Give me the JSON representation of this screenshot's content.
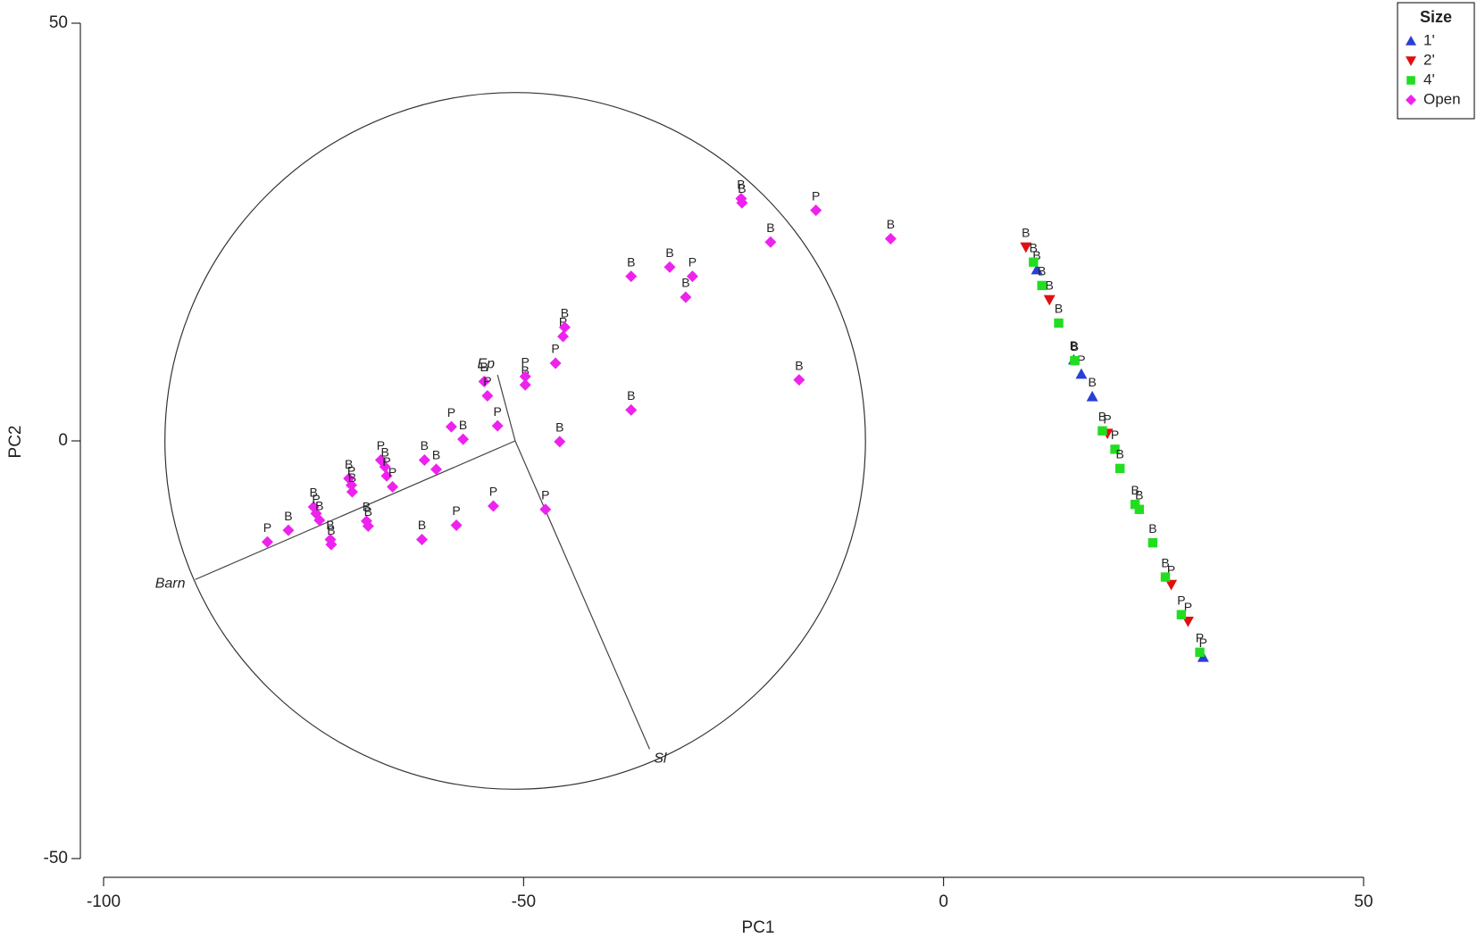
{
  "chart_data": {
    "type": "scatter",
    "x_label": "PC1",
    "y_label": "PC2",
    "xlim": [
      -100,
      50
    ],
    "xticks": [
      -100,
      -50,
      0,
      50
    ],
    "ylim": [
      -50,
      50
    ],
    "yticks": [
      -50,
      0,
      50
    ],
    "legend_title": "Size",
    "legend_position": "top-right",
    "series": [
      {
        "name": "1'",
        "color": "#2a3fd6",
        "marker": "triangle-up",
        "x": [
          11.1,
          15.5,
          16.4,
          17.7,
          30.9
        ],
        "values": [
          20.5,
          9.7,
          8.0,
          5.3,
          -25.9
        ],
        "labels": [
          "B",
          "B",
          "P",
          "B",
          "P"
        ]
      },
      {
        "name": "2'",
        "color": "#e01010",
        "marker": "triangle-down",
        "x": [
          9.8,
          12.6,
          19.5,
          27.1,
          29.1
        ],
        "values": [
          23.2,
          16.9,
          0.9,
          -17.2,
          -21.6
        ],
        "labels": [
          "B",
          "B",
          "P",
          "P",
          "P"
        ]
      },
      {
        "name": "4'",
        "color": "#22dd22",
        "marker": "square",
        "x": [
          10.7,
          11.7,
          13.7,
          15.6,
          18.9,
          20.4,
          21.0,
          22.8,
          23.3,
          24.9,
          26.4,
          28.3,
          30.5
        ],
        "values": [
          21.4,
          18.6,
          14.1,
          9.6,
          1.2,
          -1.0,
          -3.3,
          -7.6,
          -8.2,
          -12.2,
          -16.3,
          -20.8,
          -25.3
        ],
        "labels": [
          "B",
          "B",
          "B",
          "B",
          "B",
          "P",
          "B",
          "B",
          "B",
          "B",
          "B",
          "P",
          "P"
        ]
      },
      {
        "name": "Open",
        "color": "#ee22ee",
        "marker": "diamond",
        "x": [
          -80.5,
          -78.0,
          -75.0,
          -74.7,
          -74.3,
          -72.9,
          -73.0,
          -70.8,
          -70.5,
          -70.4,
          -68.7,
          -68.5,
          -67.0,
          -66.5,
          -66.3,
          -65.6,
          -62.1,
          -61.8,
          -60.4,
          -58.6,
          -58.0,
          -57.2,
          -54.7,
          -54.3,
          -53.1,
          -53.6,
          -49.8,
          -49.8,
          -47.4,
          -46.2,
          -45.7,
          -45.3,
          -45.1,
          -37.2,
          -37.2,
          -32.6,
          -30.7,
          -29.9,
          -24.1,
          -24.0,
          -20.6,
          -17.2,
          -15.2,
          -6.3
        ],
        "values": [
          -12.1,
          -10.7,
          -7.9,
          -8.7,
          -9.5,
          -12.4,
          -11.8,
          -4.5,
          -5.3,
          -6.1,
          -9.6,
          -10.2,
          -2.3,
          -3.1,
          -4.2,
          -5.5,
          -11.8,
          -2.3,
          -3.4,
          1.7,
          -10.1,
          0.2,
          7.1,
          5.4,
          1.8,
          -7.8,
          6.7,
          7.7,
          -8.2,
          9.3,
          -0.1,
          12.5,
          13.6,
          19.7,
          3.7,
          20.8,
          17.2,
          19.7,
          29.0,
          28.5,
          23.8,
          7.3,
          27.6,
          24.2
        ],
        "labels": [
          "P",
          "B",
          "B",
          "P",
          "B",
          "B",
          "B",
          "B",
          "P",
          "B",
          "B",
          "B",
          "P",
          "B",
          "P",
          "P",
          "B",
          "B",
          "B",
          "P",
          "P",
          "B",
          "B",
          "P",
          "P",
          "P",
          "B",
          "P",
          "P",
          "P",
          "B",
          "P",
          "B",
          "B",
          "B",
          "B",
          "B",
          "P",
          "B",
          "B",
          "B",
          "B",
          "P",
          "B"
        ]
      }
    ],
    "circle": {
      "center": [
        -51.0,
        0
      ],
      "radius": 41.7
    },
    "vectors": [
      {
        "label": "Barn",
        "x": -89.1,
        "y": -16.6
      },
      {
        "label": "Ep",
        "x": -53.1,
        "y": 7.9
      },
      {
        "label": "Sl",
        "x": -35.0,
        "y": -36.9
      }
    ]
  }
}
